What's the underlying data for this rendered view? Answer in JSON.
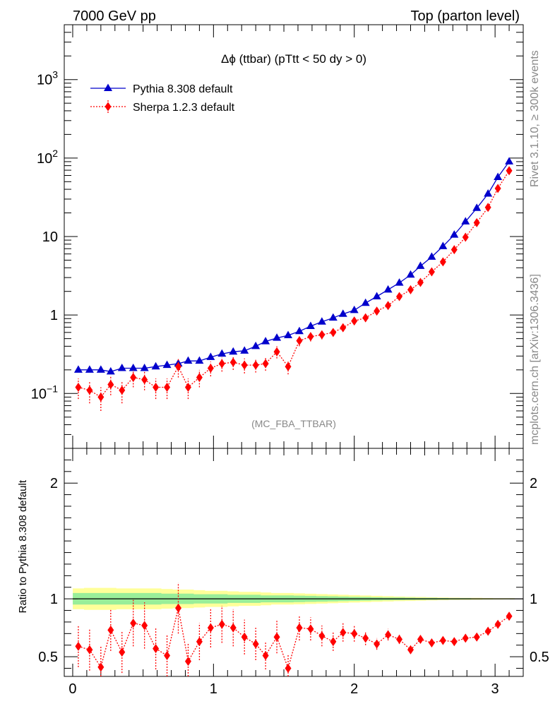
{
  "header": {
    "left_title": "7000 GeV pp",
    "right_title": "Top (parton level)"
  },
  "side_labels": {
    "rivet": "Rivet 3.1.10, ≥ 300k events",
    "mcplots": "mcplots.cern.ch [arXiv:1306.3436]"
  },
  "chart_data": [
    {
      "type": "line",
      "title": "Δϕ (ttbar) (pTtt < 50 dy > 0)",
      "analysis_tag": "(MC_FBA_TTBAR)",
      "y_scale": "log",
      "ylim": [
        0.02,
        5000
      ],
      "xlim": [
        -0.06,
        3.2
      ],
      "y_ticks": [
        {
          "value": 0.1,
          "label": "10",
          "exp": "−1"
        },
        {
          "value": 1,
          "label": "1",
          "exp": ""
        },
        {
          "value": 10,
          "label": "10",
          "exp": ""
        },
        {
          "value": 100,
          "label": "10",
          "exp": "2"
        },
        {
          "value": 1000,
          "label": "10",
          "exp": "3"
        }
      ],
      "legend_position": "top-left",
      "x": [
        0.04,
        0.12,
        0.2,
        0.27,
        0.35,
        0.43,
        0.51,
        0.59,
        0.67,
        0.75,
        0.82,
        0.9,
        0.98,
        1.06,
        1.14,
        1.22,
        1.3,
        1.37,
        1.45,
        1.53,
        1.61,
        1.69,
        1.77,
        1.85,
        1.92,
        2.0,
        2.08,
        2.16,
        2.24,
        2.32,
        2.4,
        2.47,
        2.55,
        2.63,
        2.71,
        2.79,
        2.87,
        2.95,
        3.02,
        3.1
      ],
      "series": [
        {
          "name": "Pythia 8.308 default",
          "color": "#0000cc",
          "marker": "triangle",
          "values": [
            0.2,
            0.2,
            0.2,
            0.19,
            0.21,
            0.21,
            0.21,
            0.22,
            0.23,
            0.24,
            0.26,
            0.26,
            0.29,
            0.32,
            0.34,
            0.35,
            0.4,
            0.46,
            0.51,
            0.55,
            0.62,
            0.72,
            0.82,
            0.92,
            1.03,
            1.15,
            1.42,
            1.72,
            2.1,
            2.57,
            3.25,
            4.2,
            5.5,
            7.5,
            10.5,
            15.5,
            23.0,
            35.0,
            57.0,
            90.0
          ]
        },
        {
          "name": "Sherpa 1.2.3 default",
          "color": "#ff0000",
          "marker": "diamond",
          "values": [
            0.12,
            0.11,
            0.09,
            0.13,
            0.11,
            0.16,
            0.15,
            0.12,
            0.12,
            0.22,
            0.12,
            0.16,
            0.21,
            0.24,
            0.25,
            0.23,
            0.23,
            0.24,
            0.34,
            0.22,
            0.47,
            0.53,
            0.56,
            0.6,
            0.69,
            0.84,
            0.92,
            1.12,
            1.32,
            1.72,
            2.1,
            2.6,
            3.55,
            4.75,
            6.8,
            9.8,
            15.0,
            23.5,
            41.0,
            69.0
          ],
          "errors": [
            0.035,
            0.035,
            0.03,
            0.035,
            0.035,
            0.04,
            0.04,
            0.035,
            0.035,
            0.06,
            0.035,
            0.04,
            0.045,
            0.05,
            0.05,
            0.05,
            0.045,
            0.045,
            0.06,
            0.045,
            0.07,
            0.07,
            0.07,
            0.07,
            0.08,
            0.09,
            0.1,
            0.11,
            0.12,
            0.15,
            0.17,
            0.2,
            0.26,
            0.33,
            0.45,
            0.6,
            0.9,
            1.3,
            2.2,
            3.6
          ]
        }
      ]
    },
    {
      "type": "line",
      "ylabel": "Ratio to Pythia 8.308 default",
      "ylim": [
        0.33,
        2.3
      ],
      "xlim": [
        -0.06,
        3.2
      ],
      "y_ticks": [
        0.5,
        1,
        2
      ],
      "x_ticks": [
        0,
        1,
        2,
        3
      ],
      "reference_line": 1,
      "band_green_halfwidth": [
        0.05,
        0.05,
        0.05,
        0.05,
        0.05,
        0.05,
        0.05,
        0.05,
        0.045,
        0.045,
        0.045,
        0.04,
        0.04,
        0.04,
        0.035,
        0.035,
        0.035,
        0.03,
        0.03,
        0.03,
        0.028,
        0.026,
        0.024,
        0.022,
        0.02,
        0.018,
        0.016,
        0.014,
        0.012,
        0.011,
        0.01,
        0.009,
        0.008,
        0.007,
        0.006,
        0.005,
        0.004,
        0.004,
        0.003,
        0.003
      ],
      "band_yellow_halfwidth": [
        0.09,
        0.095,
        0.095,
        0.095,
        0.09,
        0.09,
        0.09,
        0.09,
        0.085,
        0.08,
        0.08,
        0.075,
        0.07,
        0.07,
        0.065,
        0.06,
        0.06,
        0.055,
        0.05,
        0.05,
        0.047,
        0.044,
        0.041,
        0.038,
        0.035,
        0.032,
        0.029,
        0.026,
        0.023,
        0.02,
        0.018,
        0.016,
        0.014,
        0.012,
        0.01,
        0.009,
        0.008,
        0.007,
        0.006,
        0.005
      ],
      "series": [
        {
          "name": "Sherpa 1.2.3 default",
          "color": "#ff0000",
          "marker": "diamond",
          "values": [
            0.59,
            0.56,
            0.41,
            0.73,
            0.54,
            0.79,
            0.77,
            0.57,
            0.51,
            0.92,
            0.46,
            0.63,
            0.75,
            0.78,
            0.75,
            0.67,
            0.61,
            0.51,
            0.67,
            0.4,
            0.75,
            0.74,
            0.68,
            0.63,
            0.71,
            0.7,
            0.66,
            0.61,
            0.69,
            0.65,
            0.56,
            0.65,
            0.62,
            0.64,
            0.63,
            0.66,
            0.67,
            0.72,
            0.78,
            0.85
          ],
          "errors": [
            0.18,
            0.18,
            0.18,
            0.18,
            0.18,
            0.2,
            0.2,
            0.18,
            0.18,
            0.22,
            0.16,
            0.16,
            0.17,
            0.16,
            0.16,
            0.15,
            0.14,
            0.12,
            0.14,
            0.12,
            0.11,
            0.1,
            0.09,
            0.08,
            0.08,
            0.07,
            0.06,
            0.05,
            0.05,
            0.04,
            0.035,
            0.03,
            0.025,
            0.02,
            0.02,
            0.015,
            0.015,
            0.012,
            0.01,
            0.01
          ]
        }
      ]
    }
  ]
}
